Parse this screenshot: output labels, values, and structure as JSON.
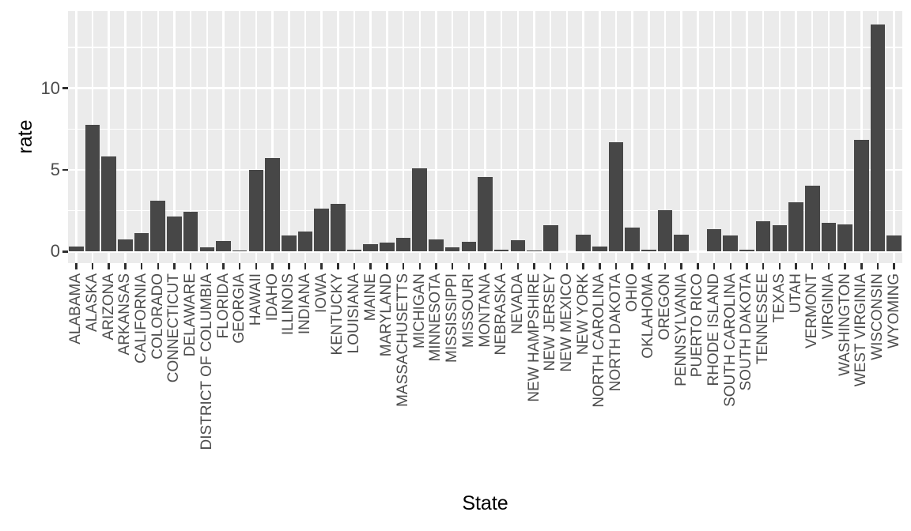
{
  "figure": {
    "kind": "ggplot-style bar chart",
    "y_axis_title": "rate",
    "x_axis_title": "State"
  },
  "colors": {
    "panel_background": "#ebebeb",
    "gridline": "#ffffff",
    "bar_fill": "#474747",
    "axis_text": "#4d4d4d",
    "tick_mark": "#2e2e2e",
    "axis_title": "#000000",
    "page_background": "#ffffff"
  },
  "chart_data": {
    "type": "bar",
    "title": "",
    "xlabel": "State",
    "ylabel": "rate",
    "legend_position": "none",
    "grid": "on",
    "ylim": [
      -0.7,
      14.73
    ],
    "yticks": [
      0,
      5,
      10
    ],
    "ytick_labels": [
      "0",
      "5",
      "10"
    ],
    "minor_gridlines_y": [
      2.5,
      7.5,
      12.5
    ],
    "categories": [
      "ALABAMA",
      "ALASKA",
      "ARIZONA",
      "ARKANSAS",
      "CALIFORNIA",
      "COLORADO",
      "CONNECTICUT",
      "DELAWARE",
      "DISTRICT OF COLUMBIA",
      "FLORIDA",
      "GEORGIA",
      "HAWAII",
      "IDAHO",
      "ILLINOIS",
      "INDIANA",
      "IOWA",
      "KENTUCKY",
      "LOUISIANA",
      "MAINE",
      "MARYLAND",
      "MASSACHUSETTS",
      "MICHIGAN",
      "MINNESOTA",
      "MISSISSIPPI",
      "MISSOURI",
      "MONTANA",
      "NEBRASKA",
      "NEVADA",
      "NEW HAMPSHIRE",
      "NEW JERSEY",
      "NEW MEXICO",
      "NEW YORK",
      "NORTH CAROLINA",
      "NORTH DAKOTA",
      "OHIO",
      "OKLAHOMA",
      "OREGON",
      "PENNSYLVANIA",
      "PUERTO RICO",
      "RHODE ISLAND",
      "SOUTH CAROLINA",
      "SOUTH DAKOTA",
      "TENNESSEE",
      "TEXAS",
      "UTAH",
      "VERMONT",
      "VIRGINIA",
      "WASHINGTON",
      "WEST VIRGINIA",
      "WISCONSIN",
      "WYOMING"
    ],
    "values": [
      0.32,
      7.75,
      5.8,
      0.75,
      1.15,
      3.1,
      2.15,
      2.45,
      0.25,
      0.65,
      0.06,
      5.0,
      5.75,
      1.0,
      1.22,
      2.65,
      2.9,
      0.1,
      0.45,
      0.56,
      0.85,
      5.1,
      0.72,
      0.27,
      0.58,
      4.55,
      0.12,
      0.7,
      0.08,
      1.6,
      0,
      1.04,
      0.3,
      6.7,
      1.45,
      0.12,
      2.55,
      1.02,
      0,
      1.36,
      0.96,
      0.11,
      1.84,
      1.62,
      3.0,
      4.05,
      1.76,
      1.65,
      6.85,
      13.9,
      0.96
    ]
  }
}
